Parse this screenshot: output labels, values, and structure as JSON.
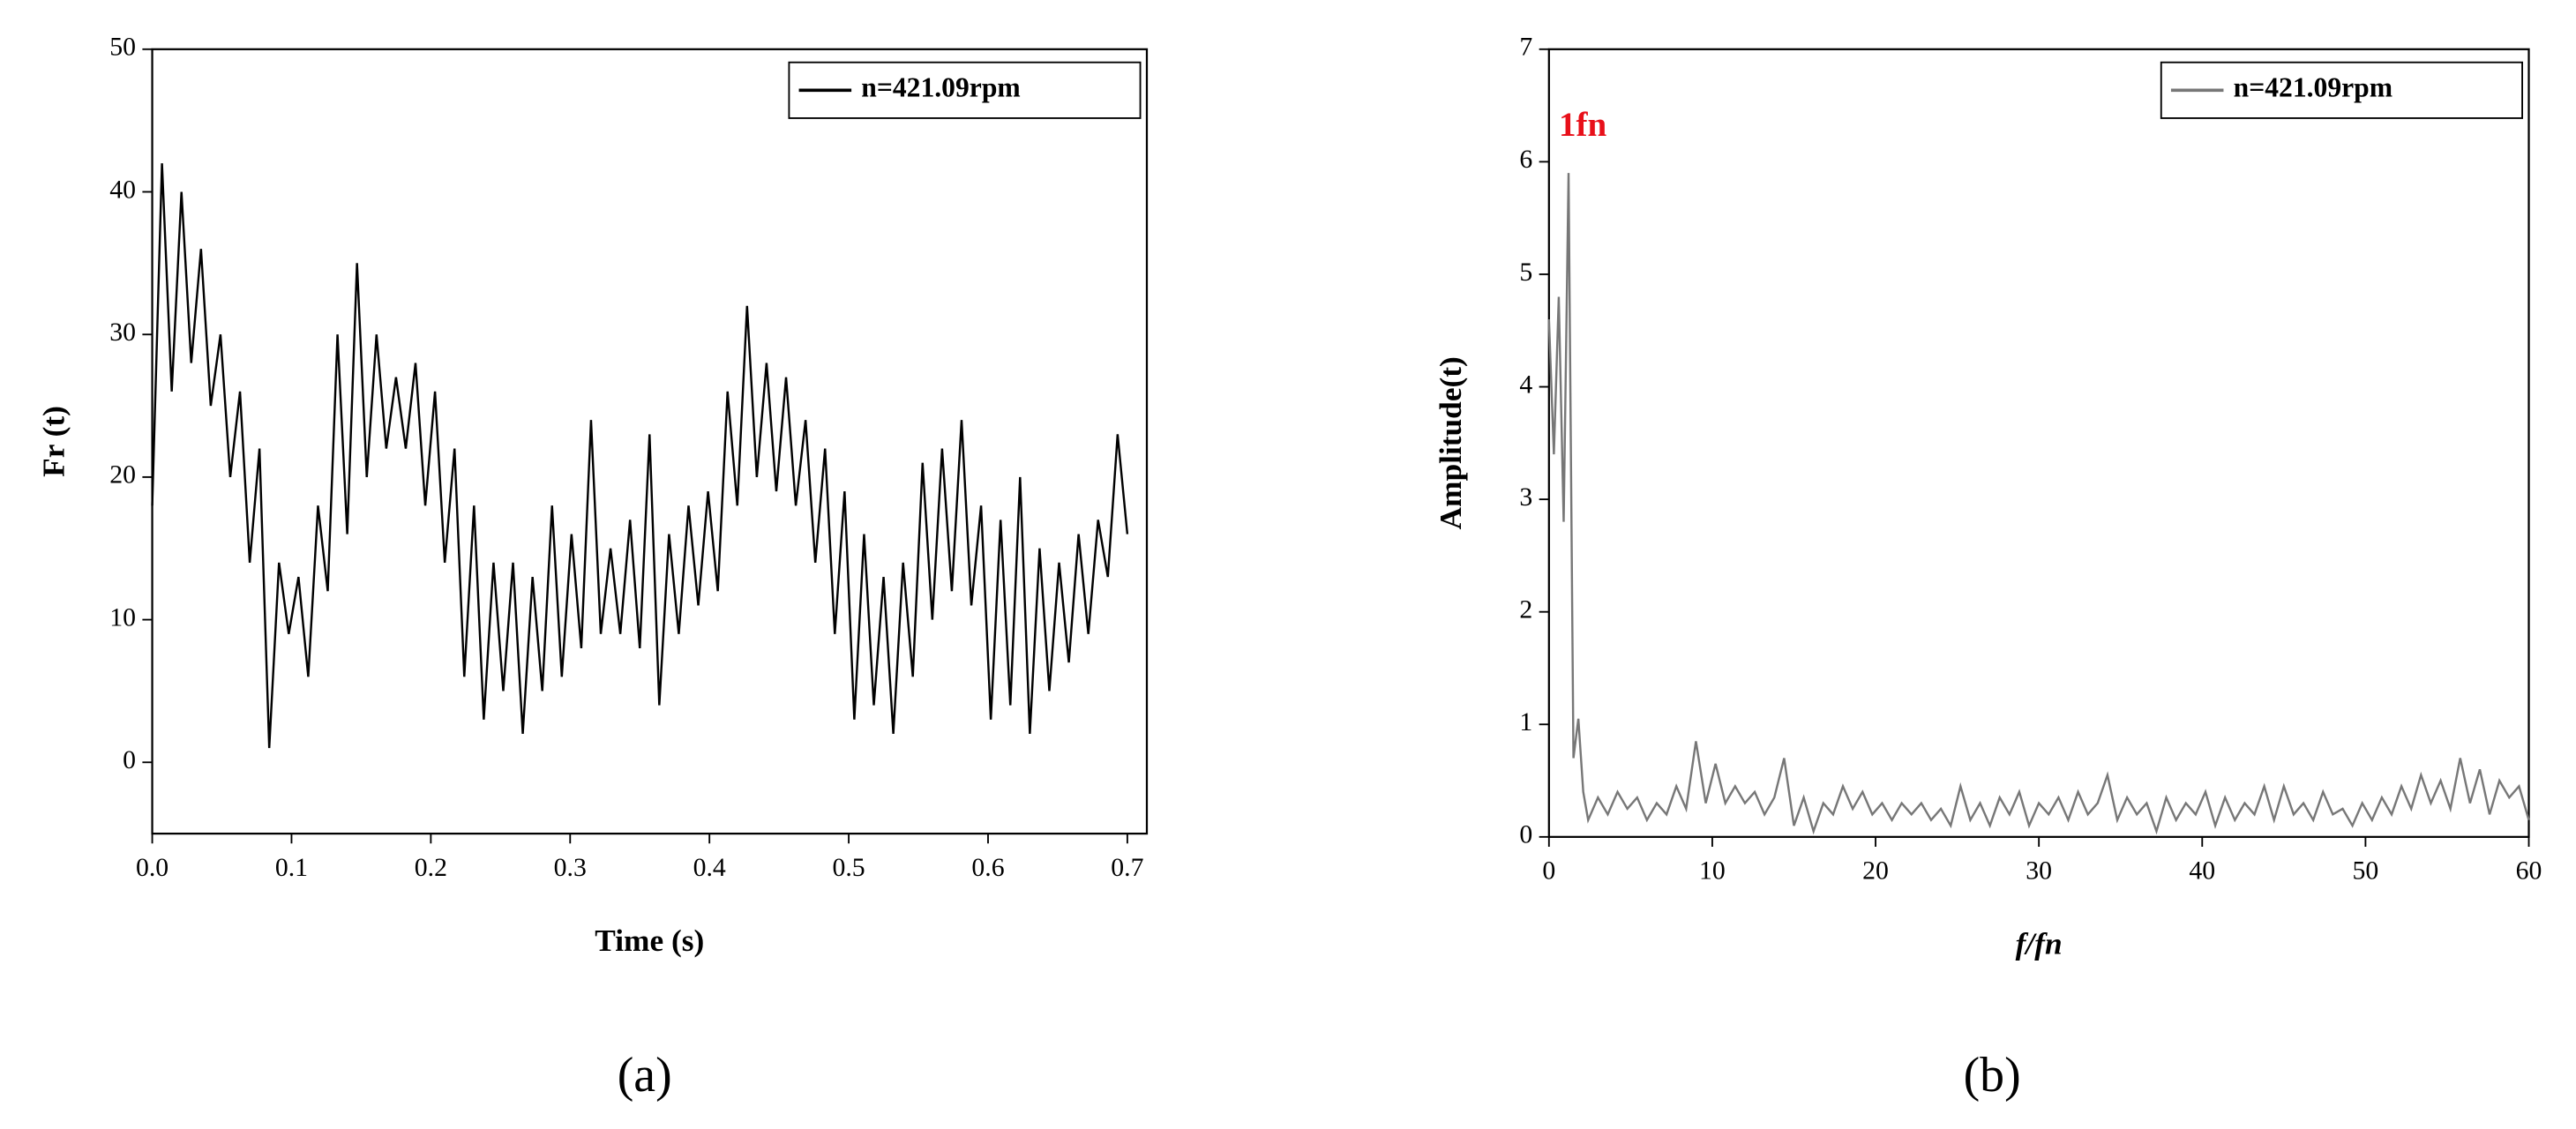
{
  "chart_data": [
    {
      "type": "line",
      "caption": "(a)",
      "x_label": "Time (s)",
      "y_label": "Fr (t)",
      "xlim": [
        0,
        0.714
      ],
      "ylim": [
        -5,
        50
      ],
      "xticks": [
        {
          "value": 0,
          "label": "0.0"
        },
        0.1,
        0.2,
        0.3,
        0.4,
        0.5,
        0.6,
        0.7
      ],
      "yticks": [
        0,
        10,
        20,
        30,
        40,
        50
      ],
      "legend": "upper right",
      "x": [
        0,
        0.007,
        0.014,
        0.021,
        0.028,
        0.035,
        0.042,
        0.049,
        0.056,
        0.063,
        0.07,
        0.077,
        0.084,
        0.091,
        0.098,
        0.105,
        0.112,
        0.119,
        0.126,
        0.133,
        0.14,
        0.147,
        0.154,
        0.161,
        0.168,
        0.175,
        0.182,
        0.189,
        0.196,
        0.203,
        0.21,
        0.217,
        0.224,
        0.231,
        0.238,
        0.245,
        0.252,
        0.259,
        0.266,
        0.273,
        0.28,
        0.287,
        0.294,
        0.301,
        0.308,
        0.315,
        0.322,
        0.329,
        0.336,
        0.343,
        0.35,
        0.357,
        0.364,
        0.371,
        0.378,
        0.385,
        0.392,
        0.399,
        0.406,
        0.413,
        0.42,
        0.427,
        0.434,
        0.441,
        0.448,
        0.455,
        0.462,
        0.469,
        0.476,
        0.483,
        0.49,
        0.497,
        0.504,
        0.511,
        0.518,
        0.525,
        0.532,
        0.539,
        0.546,
        0.553,
        0.56,
        0.567,
        0.574,
        0.581,
        0.588,
        0.595,
        0.602,
        0.609,
        0.616,
        0.623,
        0.63,
        0.637,
        0.644,
        0.651,
        0.658,
        0.665,
        0.672,
        0.679,
        0.686,
        0.693,
        0.7
      ],
      "series": [
        {
          "name": "n=421.09rpm",
          "color": "#000000",
          "values": [
            18,
            42,
            26,
            40,
            28,
            36,
            25,
            30,
            20,
            26,
            14,
            22,
            1,
            14,
            9,
            13,
            6,
            18,
            12,
            30,
            16,
            35,
            20,
            30,
            22,
            27,
            22,
            28,
            18,
            26,
            14,
            22,
            6,
            18,
            3,
            14,
            5,
            14,
            2,
            13,
            5,
            18,
            6,
            16,
            8,
            24,
            9,
            15,
            9,
            17,
            8,
            23,
            4,
            16,
            9,
            18,
            11,
            19,
            12,
            26,
            18,
            32,
            20,
            28,
            19,
            27,
            18,
            24,
            14,
            22,
            9,
            19,
            3,
            16,
            4,
            13,
            2,
            14,
            6,
            21,
            10,
            22,
            12,
            24,
            11,
            18,
            3,
            17,
            4,
            20,
            2,
            15,
            5,
            14,
            7,
            16,
            9,
            17,
            13,
            23,
            16
          ]
        }
      ]
    },
    {
      "type": "line",
      "caption": "(b)",
      "x_label": "f/fn",
      "y_label": "Amplitude(t)",
      "annotation": "1fn",
      "xlim": [
        0,
        60
      ],
      "ylim": [
        0,
        7
      ],
      "xticks": [
        0,
        10,
        20,
        30,
        40,
        50,
        60
      ],
      "yticks": [
        0,
        1,
        2,
        3,
        4,
        5,
        6,
        7
      ],
      "legend": "upper right",
      "x": [
        0,
        0.3,
        0.6,
        0.9,
        1.2,
        1.5,
        1.8,
        2.1,
        2.4,
        3.0,
        3.6,
        4.2,
        4.8,
        5.4,
        6.0,
        6.6,
        7.2,
        7.8,
        8.4,
        9.0,
        9.6,
        10.2,
        10.8,
        11.4,
        12.0,
        12.6,
        13.2,
        13.8,
        14.4,
        15.0,
        15.6,
        16.2,
        16.8,
        17.4,
        18.0,
        18.6,
        19.2,
        19.8,
        20.4,
        21.0,
        21.6,
        22.2,
        22.8,
        23.4,
        24.0,
        24.6,
        25.2,
        25.8,
        26.4,
        27.0,
        27.6,
        28.2,
        28.8,
        29.4,
        30.0,
        30.6,
        31.2,
        31.8,
        32.4,
        33.0,
        33.6,
        34.2,
        34.8,
        35.4,
        36.0,
        36.6,
        37.2,
        37.8,
        38.4,
        39.0,
        39.6,
        40.2,
        40.8,
        41.4,
        42.0,
        42.6,
        43.2,
        43.8,
        44.4,
        45.0,
        45.6,
        46.2,
        46.8,
        47.4,
        48.0,
        48.6,
        49.2,
        49.8,
        50.4,
        51.0,
        51.6,
        52.2,
        52.8,
        53.4,
        54.0,
        54.6,
        55.2,
        55.8,
        56.4,
        57.0,
        57.6,
        58.2,
        58.8,
        59.4,
        60.0
      ],
      "series": [
        {
          "name": "n=421.09rpm",
          "color": "#777777",
          "values": [
            4.6,
            3.4,
            4.8,
            2.8,
            5.9,
            0.7,
            1.05,
            0.4,
            0.15,
            0.35,
            0.2,
            0.4,
            0.25,
            0.35,
            0.15,
            0.3,
            0.2,
            0.45,
            0.25,
            0.85,
            0.3,
            0.65,
            0.3,
            0.45,
            0.3,
            0.4,
            0.2,
            0.35,
            0.7,
            0.1,
            0.35,
            0.05,
            0.3,
            0.2,
            0.45,
            0.25,
            0.4,
            0.2,
            0.3,
            0.15,
            0.3,
            0.2,
            0.3,
            0.15,
            0.25,
            0.1,
            0.45,
            0.15,
            0.3,
            0.1,
            0.35,
            0.2,
            0.4,
            0.1,
            0.3,
            0.2,
            0.35,
            0.15,
            0.4,
            0.2,
            0.3,
            0.55,
            0.15,
            0.35,
            0.2,
            0.3,
            0.05,
            0.35,
            0.15,
            0.3,
            0.2,
            0.4,
            0.1,
            0.35,
            0.15,
            0.3,
            0.2,
            0.45,
            0.15,
            0.45,
            0.2,
            0.3,
            0.15,
            0.4,
            0.2,
            0.25,
            0.1,
            0.3,
            0.15,
            0.35,
            0.2,
            0.45,
            0.25,
            0.55,
            0.3,
            0.5,
            0.25,
            0.7,
            0.3,
            0.6,
            0.2,
            0.5,
            0.35,
            0.45,
            0.15
          ]
        }
      ]
    }
  ]
}
